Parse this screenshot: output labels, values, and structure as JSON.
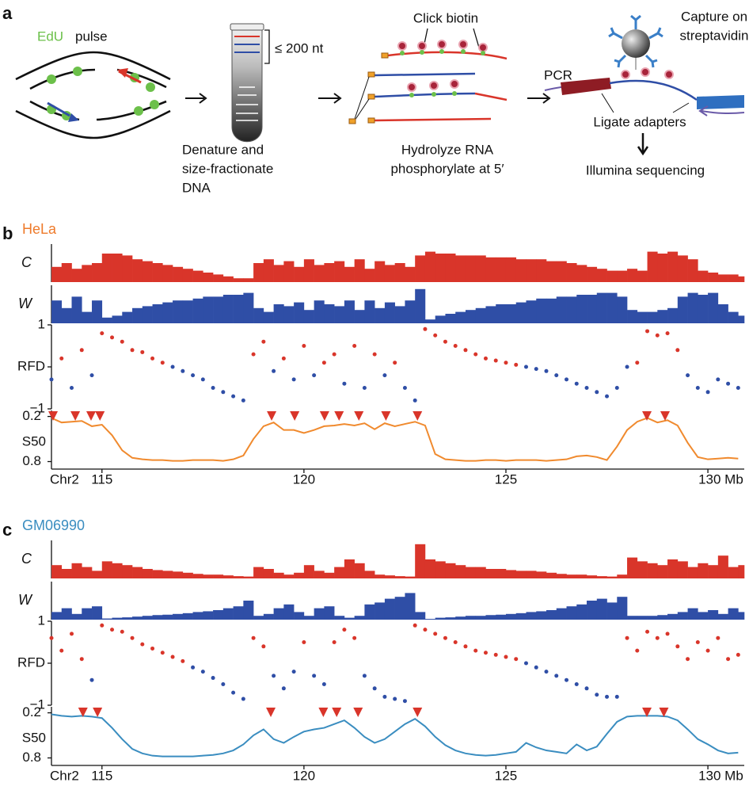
{
  "panel_a": {
    "label": "a",
    "edu": "EdU",
    "pulse": "pulse",
    "size": "≤ 200 nt",
    "step1": [
      "Denature and",
      "size-fractionate",
      "DNA"
    ],
    "click": "Click biotin",
    "step2": [
      "Hydrolyze RNA",
      "phosphorylate at 5′"
    ],
    "capture": [
      "Capture on",
      "streptavidin"
    ],
    "pcr": "PCR",
    "ligate": "Ligate adapters",
    "illumina": "Illumina sequencing"
  },
  "panels": [
    {
      "label": "b",
      "name": "HeLa",
      "color": "#ee7a2a"
    },
    {
      "label": "c",
      "name": "GM06990",
      "color": "#3a8dc0"
    }
  ],
  "chart_data": [
    {
      "type": "bar",
      "ylabel": "C",
      "color": "#d9352a",
      "xlim": [
        113.75,
        130.9
      ],
      "ylim": [
        0,
        1
      ],
      "x": [
        113.75,
        114,
        114.25,
        114.5,
        114.75,
        115,
        115.25,
        115.5,
        115.75,
        116,
        116.25,
        116.5,
        116.75,
        117,
        117.25,
        117.5,
        117.75,
        118,
        118.25,
        118.5,
        118.75,
        119,
        119.25,
        119.5,
        119.75,
        120,
        120.25,
        120.5,
        120.75,
        121,
        121.25,
        121.5,
        121.75,
        122,
        122.25,
        122.5,
        122.75,
        123,
        123.25,
        123.5,
        123.75,
        124,
        124.25,
        124.5,
        124.75,
        125,
        125.25,
        125.5,
        125.75,
        126,
        126.25,
        126.5,
        126.75,
        127,
        127.25,
        127.5,
        127.75,
        128,
        128.25,
        128.5,
        128.75,
        129,
        129.25,
        129.5,
        129.75,
        130,
        130.25,
        130.5,
        130.75
      ],
      "values": [
        0.4,
        0.5,
        0.35,
        0.45,
        0.5,
        0.75,
        0.75,
        0.7,
        0.6,
        0.55,
        0.5,
        0.45,
        0.4,
        0.35,
        0.3,
        0.25,
        0.2,
        0.15,
        0.1,
        0.1,
        0.5,
        0.6,
        0.45,
        0.55,
        0.4,
        0.6,
        0.45,
        0.5,
        0.55,
        0.4,
        0.6,
        0.35,
        0.55,
        0.45,
        0.5,
        0.4,
        0.7,
        0.8,
        0.75,
        0.75,
        0.7,
        0.7,
        0.7,
        0.65,
        0.65,
        0.65,
        0.6,
        0.6,
        0.6,
        0.55,
        0.55,
        0.5,
        0.45,
        0.4,
        0.35,
        0.3,
        0.3,
        0.35,
        0.3,
        0.8,
        0.75,
        0.8,
        0.7,
        0.6,
        0.3,
        0.25,
        0.2,
        0.2,
        0.15
      ]
    },
    {
      "type": "bar",
      "ylabel": "W",
      "color": "#2f4ea6",
      "xlim": [
        113.75,
        130.9
      ],
      "ylim": [
        0,
        1
      ],
      "x": [
        113.75,
        114,
        114.25,
        114.5,
        114.75,
        115,
        115.25,
        115.5,
        115.75,
        116,
        116.25,
        116.5,
        116.75,
        117,
        117.25,
        117.5,
        117.75,
        118,
        118.25,
        118.5,
        118.75,
        119,
        119.25,
        119.5,
        119.75,
        120,
        120.25,
        120.5,
        120.75,
        121,
        121.25,
        121.5,
        121.75,
        122,
        122.25,
        122.5,
        122.75,
        123,
        123.25,
        123.5,
        123.75,
        124,
        124.25,
        124.5,
        124.75,
        125,
        125.25,
        125.5,
        125.75,
        126,
        126.25,
        126.5,
        126.75,
        127,
        127.25,
        127.5,
        127.75,
        128,
        128.25,
        128.5,
        128.75,
        129,
        129.25,
        129.5,
        129.75,
        130,
        130.25,
        130.5,
        130.75
      ],
      "values": [
        0.6,
        0.4,
        0.7,
        0.3,
        0.6,
        0.15,
        0.2,
        0.3,
        0.4,
        0.45,
        0.5,
        0.55,
        0.6,
        0.6,
        0.65,
        0.7,
        0.7,
        0.75,
        0.75,
        0.8,
        0.4,
        0.3,
        0.5,
        0.45,
        0.55,
        0.35,
        0.6,
        0.5,
        0.45,
        0.6,
        0.35,
        0.6,
        0.4,
        0.55,
        0.45,
        0.6,
        0.9,
        0.1,
        0.2,
        0.25,
        0.3,
        0.35,
        0.4,
        0.45,
        0.5,
        0.5,
        0.55,
        0.6,
        0.65,
        0.65,
        0.7,
        0.7,
        0.75,
        0.75,
        0.8,
        0.8,
        0.7,
        0.35,
        0.3,
        0.3,
        0.35,
        0.4,
        0.7,
        0.8,
        0.75,
        0.8,
        0.5,
        0.3,
        0.2
      ]
    },
    {
      "type": "scatter",
      "colors": {
        "positive": "#d9352a",
        "negative": "#2f4ea6"
      },
      "xlim": [
        113.75,
        130.9
      ],
      "ylim": [
        -1,
        1
      ],
      "yticks": [
        {
          "value": -1,
          "label": "−1"
        },
        {
          "value": 0,
          "label": "RFD"
        },
        1
      ],
      "x": [
        113.75,
        114,
        114.25,
        114.5,
        114.75,
        115,
        115.25,
        115.5,
        115.75,
        116,
        116.25,
        116.5,
        116.75,
        117,
        117.25,
        117.5,
        117.75,
        118,
        118.25,
        118.5,
        118.75,
        119,
        119.25,
        119.5,
        119.75,
        120,
        120.25,
        120.5,
        120.75,
        121,
        121.25,
        121.5,
        121.75,
        122,
        122.25,
        122.5,
        122.75,
        123,
        123.25,
        123.5,
        123.75,
        124,
        124.25,
        124.5,
        124.75,
        125,
        125.25,
        125.5,
        125.75,
        126,
        126.25,
        126.5,
        126.75,
        127,
        127.25,
        127.5,
        127.75,
        128,
        128.25,
        128.5,
        128.75,
        129,
        129.25,
        129.5,
        129.75,
        130,
        130.25,
        130.5,
        130.75
      ],
      "values": [
        -0.3,
        0.2,
        -0.5,
        0.4,
        -0.2,
        0.8,
        0.7,
        0.6,
        0.4,
        0.35,
        0.2,
        0.1,
        0.0,
        -0.1,
        -0.2,
        -0.3,
        -0.5,
        -0.6,
        -0.7,
        -0.8,
        0.3,
        0.6,
        -0.1,
        0.2,
        -0.3,
        0.5,
        -0.2,
        0.1,
        0.3,
        -0.4,
        0.5,
        -0.5,
        0.3,
        -0.2,
        0.1,
        -0.5,
        -0.8,
        0.9,
        0.75,
        0.6,
        0.5,
        0.4,
        0.3,
        0.2,
        0.15,
        0.1,
        0.05,
        0.0,
        -0.05,
        -0.1,
        -0.2,
        -0.3,
        -0.4,
        -0.5,
        -0.6,
        -0.7,
        -0.5,
        0.0,
        0.1,
        0.85,
        0.75,
        0.8,
        0.4,
        -0.2,
        -0.5,
        -0.6,
        -0.3,
        -0.4,
        -0.5
      ]
    },
    {
      "type": "line",
      "ylabel": "S50",
      "color": "#f08a2e",
      "inverted": true,
      "xlim": [
        113.75,
        130.9
      ],
      "ylim": [
        0.12,
        0.9
      ],
      "yticks": [
        0.2,
        0.8
      ],
      "xticks": [
        115,
        120,
        125,
        {
          "value": 130,
          "label": "130 Mb"
        }
      ],
      "chromosome": "Chr2",
      "marker_color": "#d9352a",
      "markers": [
        113.79,
        114.34,
        114.73,
        114.95,
        119.2,
        119.77,
        120.51,
        120.87,
        121.36,
        122.03,
        122.81,
        128.49,
        128.94
      ],
      "x": [
        113.75,
        114,
        114.25,
        114.5,
        114.75,
        115,
        115.25,
        115.5,
        115.75,
        116,
        116.25,
        116.5,
        116.75,
        117,
        117.25,
        117.5,
        117.75,
        118,
        118.25,
        118.5,
        118.75,
        119,
        119.25,
        119.5,
        119.75,
        120,
        120.25,
        120.5,
        120.75,
        121,
        121.25,
        121.5,
        121.75,
        122,
        122.25,
        122.5,
        122.75,
        123,
        123.25,
        123.5,
        123.75,
        124,
        124.25,
        124.5,
        124.75,
        125,
        125.25,
        125.5,
        125.75,
        126,
        126.25,
        126.5,
        126.75,
        127,
        127.25,
        127.5,
        127.75,
        128,
        128.25,
        128.5,
        128.75,
        129,
        129.25,
        129.5,
        129.75,
        130,
        130.25,
        130.5,
        130.75
      ],
      "values": [
        0.22,
        0.28,
        0.27,
        0.26,
        0.33,
        0.31,
        0.45,
        0.65,
        0.75,
        0.77,
        0.78,
        0.78,
        0.79,
        0.79,
        0.78,
        0.78,
        0.78,
        0.79,
        0.77,
        0.72,
        0.5,
        0.33,
        0.28,
        0.38,
        0.38,
        0.42,
        0.38,
        0.33,
        0.32,
        0.3,
        0.32,
        0.29,
        0.37,
        0.29,
        0.33,
        0.3,
        0.27,
        0.32,
        0.7,
        0.77,
        0.78,
        0.79,
        0.79,
        0.78,
        0.78,
        0.79,
        0.78,
        0.78,
        0.78,
        0.79,
        0.78,
        0.77,
        0.73,
        0.72,
        0.74,
        0.78,
        0.6,
        0.38,
        0.27,
        0.22,
        0.28,
        0.25,
        0.32,
        0.55,
        0.74,
        0.77,
        0.76,
        0.75,
        0.76
      ]
    },
    {
      "type": "bar",
      "ylabel": "C",
      "color": "#d9352a",
      "xlim": [
        113.75,
        130.9
      ],
      "ylim": [
        0,
        1
      ],
      "x": [
        113.75,
        114,
        114.25,
        114.5,
        114.75,
        115,
        115.25,
        115.5,
        115.75,
        116,
        116.25,
        116.5,
        116.75,
        117,
        117.25,
        117.5,
        117.75,
        118,
        118.25,
        118.5,
        118.75,
        119,
        119.25,
        119.5,
        119.75,
        120,
        120.25,
        120.5,
        120.75,
        121,
        121.25,
        121.5,
        121.75,
        122,
        122.25,
        122.5,
        122.75,
        123,
        123.25,
        123.5,
        123.75,
        124,
        124.25,
        124.5,
        124.75,
        125,
        125.25,
        125.5,
        125.75,
        126,
        126.25,
        126.5,
        126.75,
        127,
        127.25,
        127.5,
        127.75,
        128,
        128.25,
        128.5,
        128.75,
        129,
        129.25,
        129.5,
        129.75,
        130,
        130.25,
        130.5,
        130.75
      ],
      "values": [
        0.35,
        0.25,
        0.4,
        0.3,
        0.2,
        0.45,
        0.4,
        0.35,
        0.3,
        0.25,
        0.22,
        0.2,
        0.18,
        0.15,
        0.12,
        0.1,
        0.1,
        0.08,
        0.06,
        0.05,
        0.3,
        0.25,
        0.15,
        0.1,
        0.15,
        0.35,
        0.2,
        0.15,
        0.3,
        0.5,
        0.4,
        0.2,
        0.1,
        0.08,
        0.06,
        0.05,
        0.9,
        0.5,
        0.45,
        0.4,
        0.35,
        0.3,
        0.3,
        0.25,
        0.25,
        0.22,
        0.2,
        0.2,
        0.18,
        0.15,
        0.12,
        0.1,
        0.1,
        0.08,
        0.06,
        0.05,
        0.1,
        0.55,
        0.45,
        0.4,
        0.35,
        0.5,
        0.45,
        0.3,
        0.4,
        0.35,
        0.6,
        0.3,
        0.35
      ]
    },
    {
      "type": "bar",
      "ylabel": "W",
      "color": "#2f4ea6",
      "xlim": [
        113.75,
        130.9
      ],
      "ylim": [
        0,
        1
      ],
      "x": [
        113.75,
        114,
        114.25,
        114.5,
        114.75,
        115,
        115.25,
        115.5,
        115.75,
        116,
        116.25,
        116.5,
        116.75,
        117,
        117.25,
        117.5,
        117.75,
        118,
        118.25,
        118.5,
        118.75,
        119,
        119.25,
        119.5,
        119.75,
        120,
        120.25,
        120.5,
        120.75,
        121,
        121.25,
        121.5,
        121.75,
        122,
        122.25,
        122.5,
        122.75,
        123,
        123.25,
        123.5,
        123.75,
        124,
        124.25,
        124.5,
        124.75,
        125,
        125.25,
        125.5,
        125.75,
        126,
        126.25,
        126.5,
        126.75,
        127,
        127.25,
        127.5,
        127.75,
        128,
        128.25,
        128.5,
        128.75,
        129,
        129.25,
        129.5,
        129.75,
        130,
        130.25,
        130.5,
        130.75
      ],
      "values": [
        0.2,
        0.3,
        0.15,
        0.3,
        0.35,
        0.03,
        0.05,
        0.06,
        0.08,
        0.1,
        0.12,
        0.13,
        0.15,
        0.17,
        0.2,
        0.22,
        0.25,
        0.3,
        0.35,
        0.5,
        0.1,
        0.15,
        0.3,
        0.4,
        0.2,
        0.1,
        0.3,
        0.35,
        0.1,
        0.05,
        0.1,
        0.4,
        0.45,
        0.55,
        0.6,
        0.7,
        0.2,
        0.02,
        0.05,
        0.06,
        0.08,
        0.1,
        0.1,
        0.12,
        0.13,
        0.15,
        0.17,
        0.2,
        0.22,
        0.25,
        0.3,
        0.35,
        0.4,
        0.5,
        0.55,
        0.45,
        0.6,
        0.1,
        0.1,
        0.1,
        0.12,
        0.15,
        0.2,
        0.3,
        0.2,
        0.25,
        0.15,
        0.3,
        0.2
      ]
    },
    {
      "type": "scatter",
      "colors": {
        "positive": "#d9352a",
        "negative": "#2f4ea6"
      },
      "xlim": [
        113.75,
        130.9
      ],
      "ylim": [
        -1,
        1
      ],
      "yticks": [
        {
          "value": -1,
          "label": "−1"
        },
        {
          "value": 0,
          "label": "RFD"
        },
        1
      ],
      "x": [
        113.75,
        114,
        114.25,
        114.5,
        114.75,
        115,
        115.25,
        115.5,
        115.75,
        116,
        116.25,
        116.5,
        116.75,
        117,
        117.25,
        117.5,
        117.75,
        118,
        118.25,
        118.5,
        118.75,
        119,
        119.25,
        119.5,
        119.75,
        120,
        120.25,
        120.5,
        120.75,
        121,
        121.25,
        121.5,
        121.75,
        122,
        122.25,
        122.5,
        122.75,
        123,
        123.25,
        123.5,
        123.75,
        124,
        124.25,
        124.5,
        124.75,
        125,
        125.25,
        125.5,
        125.75,
        126,
        126.25,
        126.5,
        126.75,
        127,
        127.25,
        127.5,
        127.75,
        128,
        128.25,
        128.5,
        128.75,
        129,
        129.25,
        129.5,
        129.75,
        130,
        130.25,
        130.5,
        130.75
      ],
      "values": [
        0.6,
        0.3,
        0.7,
        0.1,
        -0.4,
        0.9,
        0.8,
        0.75,
        0.6,
        0.45,
        0.35,
        0.25,
        0.15,
        0.05,
        -0.1,
        -0.2,
        -0.35,
        -0.5,
        -0.7,
        -0.85,
        0.6,
        0.4,
        -0.3,
        -0.6,
        -0.2,
        0.5,
        -0.3,
        -0.5,
        0.5,
        0.8,
        0.6,
        -0.3,
        -0.6,
        -0.8,
        -0.85,
        -0.9,
        0.9,
        0.8,
        0.7,
        0.6,
        0.5,
        0.4,
        0.3,
        0.25,
        0.2,
        0.15,
        0.1,
        0.0,
        -0.1,
        -0.2,
        -0.3,
        -0.4,
        -0.5,
        -0.6,
        -0.75,
        -0.8,
        -0.8,
        0.6,
        0.3,
        0.75,
        0.6,
        0.7,
        0.4,
        0.1,
        0.5,
        0.3,
        0.6,
        0.1,
        0.2
      ]
    },
    {
      "type": "line",
      "ylabel": "S50",
      "color": "#3a8dc0",
      "inverted": true,
      "xlim": [
        113.75,
        130.9
      ],
      "ylim": [
        0.12,
        0.9
      ],
      "yticks": [
        0.2,
        0.8
      ],
      "xticks": [
        115,
        120,
        125,
        {
          "value": 130,
          "label": "130 Mb"
        }
      ],
      "chromosome": "Chr2",
      "marker_color": "#d9352a",
      "markers": [
        114.53,
        114.89,
        119.18,
        120.48,
        120.81,
        121.34,
        122.81,
        128.49,
        128.91
      ],
      "x": [
        113.75,
        114,
        114.25,
        114.5,
        114.75,
        115,
        115.25,
        115.5,
        115.75,
        116,
        116.25,
        116.5,
        116.75,
        117,
        117.25,
        117.5,
        117.75,
        118,
        118.25,
        118.5,
        118.75,
        119,
        119.25,
        119.5,
        119.75,
        120,
        120.25,
        120.5,
        120.75,
        121,
        121.25,
        121.5,
        121.75,
        122,
        122.25,
        122.5,
        122.75,
        123,
        123.25,
        123.5,
        123.75,
        124,
        124.25,
        124.5,
        124.75,
        125,
        125.25,
        125.5,
        125.75,
        126,
        126.25,
        126.5,
        126.75,
        127,
        127.25,
        127.5,
        127.75,
        128,
        128.25,
        128.5,
        128.75,
        129,
        129.25,
        129.5,
        129.75,
        130,
        130.25,
        130.5,
        130.75
      ],
      "values": [
        0.22,
        0.24,
        0.25,
        0.24,
        0.25,
        0.27,
        0.4,
        0.55,
        0.68,
        0.74,
        0.77,
        0.78,
        0.78,
        0.78,
        0.78,
        0.77,
        0.76,
        0.74,
        0.7,
        0.62,
        0.5,
        0.42,
        0.55,
        0.6,
        0.52,
        0.45,
        0.42,
        0.4,
        0.35,
        0.3,
        0.4,
        0.52,
        0.6,
        0.55,
        0.45,
        0.35,
        0.28,
        0.38,
        0.52,
        0.63,
        0.7,
        0.74,
        0.76,
        0.77,
        0.76,
        0.74,
        0.72,
        0.6,
        0.66,
        0.7,
        0.72,
        0.74,
        0.62,
        0.7,
        0.65,
        0.48,
        0.32,
        0.25,
        0.24,
        0.24,
        0.24,
        0.25,
        0.3,
        0.42,
        0.55,
        0.62,
        0.7,
        0.74,
        0.73
      ]
    }
  ]
}
